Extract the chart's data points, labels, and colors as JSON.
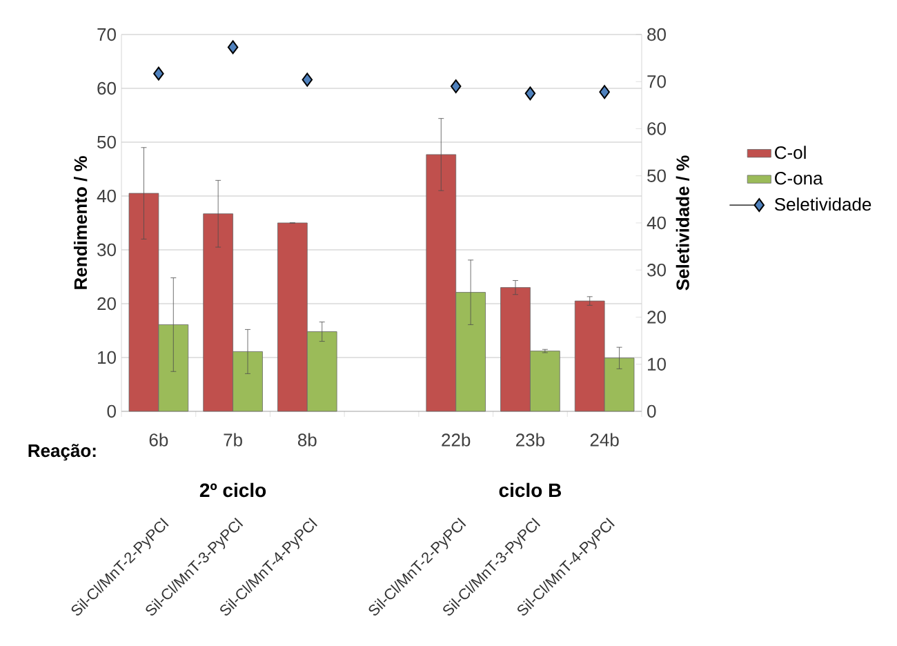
{
  "chart_data": {
    "type": "bar",
    "ylabel": "Rendimento / %",
    "y2label": "Seletividade / %",
    "categories": [
      "6b",
      "7b",
      "8b",
      null,
      "22b",
      "23b",
      "24b"
    ],
    "series": [
      {
        "name": "C-ol",
        "color": "#c0504d",
        "values": [
          40.5,
          36.7,
          35.0,
          null,
          47.7,
          23.0,
          20.5
        ],
        "errors": [
          8.5,
          6.2,
          null,
          null,
          6.7,
          1.3,
          0.8
        ]
      },
      {
        "name": "C-ona",
        "color": "#9bbb59",
        "values": [
          16.1,
          11.1,
          14.8,
          null,
          22.1,
          11.2,
          9.9
        ],
        "errors": [
          8.7,
          4.1,
          1.8,
          null,
          6.0,
          0.3,
          2.0
        ]
      },
      {
        "name": "Seletividade",
        "type": "scatter",
        "axis": "y2",
        "color": "#4f81bd",
        "values": [
          71.7,
          77.3,
          70.4,
          null,
          69.0,
          67.5,
          67.8
        ]
      }
    ],
    "ylim": [
      0,
      70
    ],
    "yticks": [
      0,
      10,
      20,
      30,
      40,
      50,
      60,
      70
    ],
    "y2lim": [
      0,
      80
    ],
    "y2ticks": [
      0,
      10,
      20,
      30,
      40,
      50,
      60,
      70,
      80
    ],
    "grid": "y",
    "legend": "right",
    "marker": "diamond",
    "annotations": [
      "Reação:",
      "2º ciclo",
      "ciclo B",
      "Sil-Cl/MnT-2-PyPCl",
      "Sil-Cl/MnT-3-PyPCl",
      "Sil-Cl/MnT-4-PyPCl",
      "Sil-Cl/MnT-2-PyPCl",
      "Sil-Cl/MnT-3-PyPCl",
      "Sil-Cl/MnT-4-PyPCl"
    ]
  }
}
